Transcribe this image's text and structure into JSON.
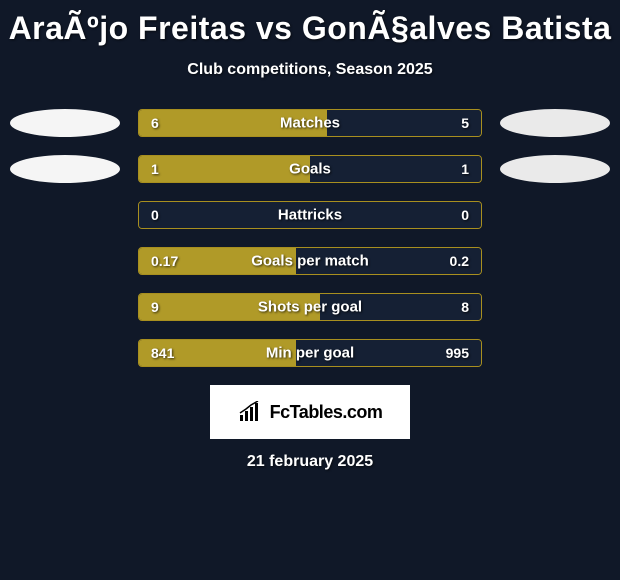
{
  "title": "AraÃºjo Freitas vs GonÃ§alves Batista",
  "subtitle": "Club competitions, Season 2025",
  "date": "21 february 2025",
  "colors": {
    "background": "#101828",
    "bar_border": "#a88f1f",
    "left_fill": "#b09a28",
    "right_fill": "#152034",
    "ellipse_left": "#f5f5f5",
    "ellipse_right": "#eaeaea",
    "text": "#ffffff"
  },
  "watermark": {
    "text": "FcTables.com"
  },
  "stats": [
    {
      "label": "Matches",
      "left_val": "6",
      "right_val": "5",
      "left_pct": 55,
      "show_ellipse": true
    },
    {
      "label": "Goals",
      "left_val": "1",
      "right_val": "1",
      "left_pct": 50,
      "show_ellipse": true
    },
    {
      "label": "Hattricks",
      "left_val": "0",
      "right_val": "0",
      "left_pct": 0,
      "show_ellipse": false
    },
    {
      "label": "Goals per match",
      "left_val": "0.17",
      "right_val": "0.2",
      "left_pct": 46,
      "show_ellipse": false
    },
    {
      "label": "Shots per goal",
      "left_val": "9",
      "right_val": "8",
      "left_pct": 53,
      "show_ellipse": false
    },
    {
      "label": "Min per goal",
      "left_val": "841",
      "right_val": "995",
      "left_pct": 46,
      "show_ellipse": false
    }
  ]
}
